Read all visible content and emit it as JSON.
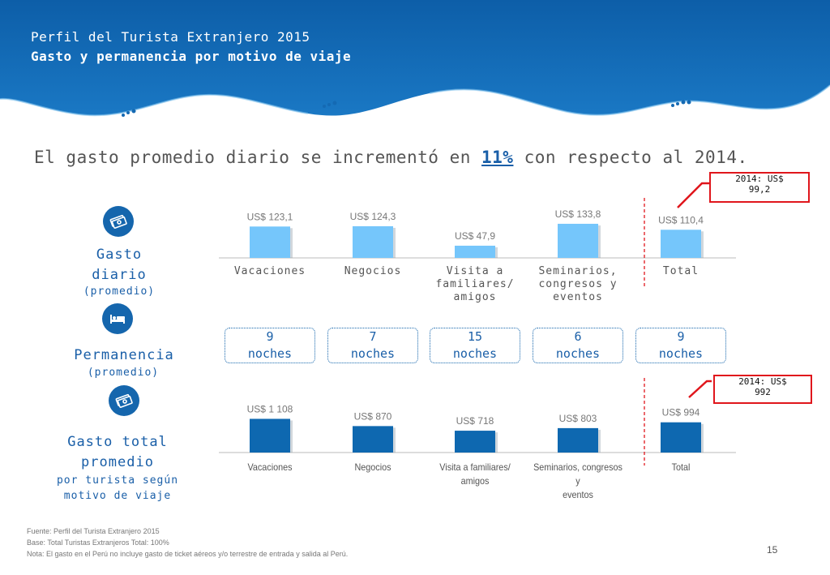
{
  "header": {
    "title": "Perfil del Turista Extranjero 2015",
    "subtitle": "Gasto y permanencia por motivo de viaje"
  },
  "headline": {
    "before": "El gasto promedio diario se incrementó en ",
    "highlight": "11%",
    "after": " con respecto al 2014."
  },
  "sections": {
    "gasto_diario": {
      "title_line1": "Gasto",
      "title_line2": "diario",
      "sub": "(promedio)",
      "icon": "money-icon"
    },
    "permanencia": {
      "title": "Permanencia",
      "sub": "(promedio)",
      "icon": "bed-icon"
    },
    "gasto_total": {
      "title_line1": "Gasto total",
      "title_line2": "promedio",
      "sub_line1": "por turista según",
      "sub_line2": "motivo de viaje",
      "icon": "money-icon"
    }
  },
  "categories_top": [
    [
      "Vacaciones"
    ],
    [
      "Negocios"
    ],
    [
      "Visita a",
      "familiares/",
      "amigos"
    ],
    [
      "Seminarios,",
      "congresos y",
      "eventos"
    ],
    [
      "Total"
    ]
  ],
  "nights": [
    {
      "number": "9",
      "unit": "noches"
    },
    {
      "number": "7",
      "unit": "noches"
    },
    {
      "number": "15",
      "unit": "noches"
    },
    {
      "number": "6",
      "unit": "noches"
    },
    {
      "number": "9",
      "unit": "noches"
    }
  ],
  "categories_bottom": [
    [
      "Vacaciones"
    ],
    [
      "Negocios"
    ],
    [
      "Visita a familiares/ amigos"
    ],
    [
      "Seminarios, congresos y",
      "eventos"
    ],
    [
      "Total"
    ]
  ],
  "callouts": {
    "daily": [
      "2014: US$",
      "99,2"
    ],
    "total": [
      "2014: US$",
      "992"
    ]
  },
  "chart_data": [
    {
      "type": "bar",
      "categories": [
        "Vacaciones",
        "Negocios",
        "Visita a familiares/ amigos",
        "Seminarios, congresos y eventos",
        "Total"
      ],
      "values": [
        123.1,
        124.3,
        47.9,
        133.8,
        110.4
      ],
      "data_labels": [
        "US$ 123,1",
        "US$ 124,3",
        "US$ 47,9",
        "US$ 133,8",
        "US$ 110,4"
      ],
      "bar_color": "#75c6fb",
      "ylim": [
        0,
        140
      ]
    },
    {
      "type": "bar",
      "categories": [
        "Vacaciones",
        "Negocios",
        "Visita a familiares/ amigos",
        "Seminarios, congresos y eventos",
        "Total"
      ],
      "values": [
        1108,
        870,
        718,
        803,
        994
      ],
      "data_labels": [
        "US$ 1 108",
        "US$ 870",
        "US$ 718",
        "US$ 803",
        "US$ 994"
      ],
      "bar_color": "#0e68b0",
      "ylim": [
        0,
        1200
      ]
    }
  ],
  "footer": {
    "source": "Fuente: Perfil del Turista Extranjero 2015",
    "base": "Base: Total Turistas Extranjeros    Total: 100%",
    "note": "Nota: El gasto en el Perú no incluye gasto de ticket aéreos y/o terrestre de entrada y salida al Perú.",
    "page": "15"
  },
  "colors": {
    "banner": "#1469b3",
    "accent": "#1a5fa8",
    "callout_border": "#e0161c",
    "separator": "#e0161c"
  }
}
